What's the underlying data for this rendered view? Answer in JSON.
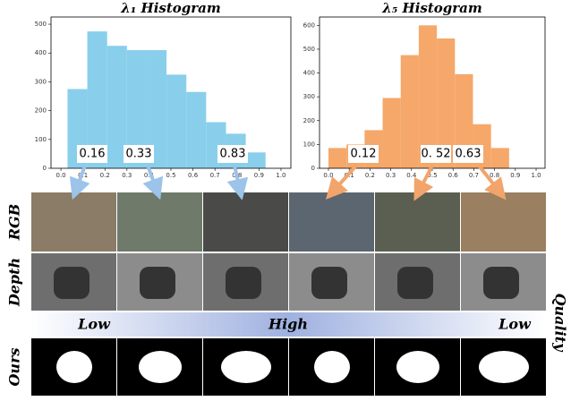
{
  "chart_data": [
    {
      "type": "histogram",
      "title": "λ₁ Histogram",
      "color": "#89cfeb",
      "bins": [
        0.03,
        0.12,
        0.21,
        0.3,
        0.39,
        0.48,
        0.57,
        0.66,
        0.75,
        0.84,
        0.93
      ],
      "values": [
        275,
        475,
        425,
        410,
        410,
        325,
        265,
        160,
        120,
        55
      ],
      "xlim": [
        -0.045,
        1.045
      ],
      "ylim": [
        0,
        525
      ],
      "xticks": [
        {
          "value": 0,
          "label": "0.0"
        },
        0.1,
        0.2,
        0.3,
        0.4,
        0.5,
        0.6,
        0.7,
        0.8,
        0.9,
        {
          "value": 1,
          "label": "1.0"
        }
      ],
      "yticks": [
        0,
        100,
        200,
        300,
        400,
        500
      ],
      "annotations": [
        "0.16",
        "0.33",
        "0.83"
      ]
    },
    {
      "type": "histogram",
      "title": "λ₅ Histogram",
      "color": "#f5a86a",
      "bins": [
        0.0,
        0.087,
        0.174,
        0.261,
        0.348,
        0.435,
        0.522,
        0.609,
        0.696,
        0.783,
        0.87
      ],
      "values": [
        85,
        100,
        160,
        295,
        475,
        600,
        545,
        395,
        185,
        85
      ],
      "xlim": [
        -0.043,
        1.043
      ],
      "ylim": [
        0,
        635
      ],
      "xticks": [
        {
          "value": 0,
          "label": "0.0"
        },
        0.1,
        0.2,
        0.3,
        0.4,
        0.5,
        0.6,
        0.7,
        0.8,
        0.9,
        {
          "value": 1,
          "label": "1.0"
        }
      ],
      "yticks": [
        0,
        100,
        200,
        300,
        400,
        500,
        600
      ],
      "annotations": [
        "0.12",
        "0. 52",
        "0.63"
      ]
    }
  ],
  "row_labels": [
    "RGB",
    "Depth",
    "Ours"
  ],
  "quality_axis": {
    "title": "Quality",
    "levels": [
      "Low",
      "High",
      "Low"
    ]
  }
}
